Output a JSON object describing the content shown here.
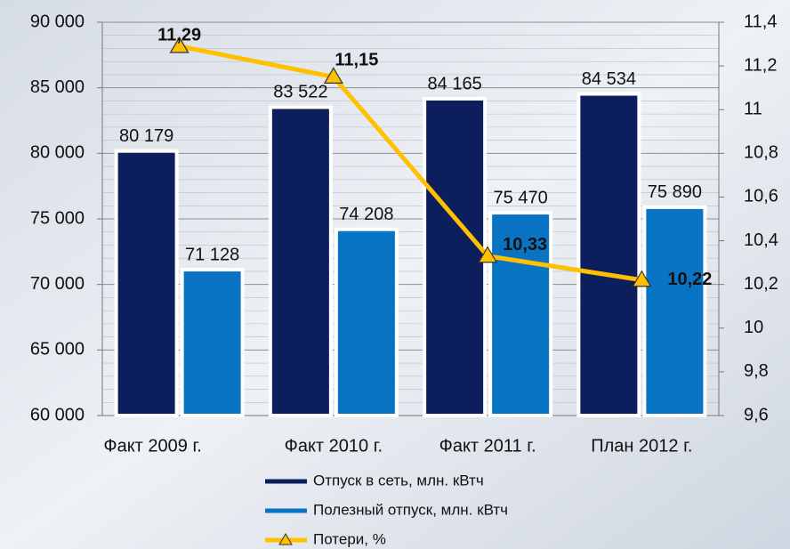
{
  "chart_data": {
    "type": "bar-line",
    "categories": [
      "Факт 2009 г.",
      "Факт 2010 г.",
      "Факт 2011 г.",
      "План  2012 г."
    ],
    "series": [
      {
        "name": "Отпуск в сеть, млн. кВтч",
        "type": "bar",
        "color": "#0c1f5c",
        "values": [
          80179,
          83522,
          84165,
          84534
        ],
        "value_labels": [
          "80 179",
          "83 522",
          "84 165",
          "84 534"
        ]
      },
      {
        "name": "Полезный отпуск, млн. кВтч",
        "type": "bar",
        "color": "#0a74c4",
        "values": [
          71128,
          74208,
          75470,
          75890
        ],
        "value_labels": [
          "71 128",
          "74 208",
          "75 470",
          "75 890"
        ]
      },
      {
        "name": "Потери, %",
        "type": "line",
        "axis": "y2",
        "color": "#ffc000",
        "values": [
          11.29,
          11.15,
          10.33,
          10.22
        ],
        "value_labels": [
          "11,29",
          "11,15",
          "10,33",
          "10,22"
        ]
      }
    ],
    "ylim": [
      60000,
      90000
    ],
    "yticks": [
      {
        "value": 60000,
        "label": "60 000"
      },
      {
        "value": 65000,
        "label": "65 000"
      },
      {
        "value": 70000,
        "label": "70 000"
      },
      {
        "value": 75000,
        "label": "75 000"
      },
      {
        "value": 80000,
        "label": "80 000"
      },
      {
        "value": 85000,
        "label": "85 000"
      },
      {
        "value": 90000,
        "label": "90 000"
      }
    ],
    "y2lim": [
      9.6,
      11.4
    ],
    "y2ticks": [
      {
        "value": 9.6,
        "label": "9,6"
      },
      {
        "value": 9.8,
        "label": "9,8"
      },
      10,
      {
        "value": 10.2,
        "label": "10,2"
      },
      {
        "value": 10.4,
        "label": "10,4"
      },
      {
        "value": 10.6,
        "label": "10,6"
      },
      {
        "value": 10.8,
        "label": "10,8"
      },
      11,
      {
        "value": 11.2,
        "label": "11,2"
      },
      {
        "value": 11.4,
        "label": "11,4"
      }
    ],
    "grid": true
  }
}
